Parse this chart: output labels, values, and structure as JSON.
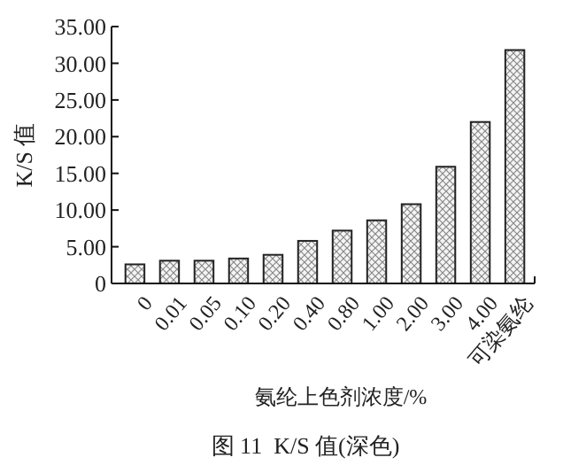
{
  "chart_data": {
    "type": "bar",
    "title": "图 11  K/S 值(深色)",
    "xlabel": "氨纶上色剂浓度/%",
    "ylabel": "K/S 值",
    "categories": [
      "0",
      "0.01",
      "0.05",
      "0.10",
      "0.20",
      "0.40",
      "0.80",
      "1.00",
      "2.00",
      "3.00",
      "4.00",
      "可染氨纶"
    ],
    "values": [
      2.6,
      3.1,
      3.1,
      3.4,
      3.9,
      5.8,
      7.2,
      8.6,
      10.8,
      15.9,
      22.0,
      31.8
    ],
    "color": "#222222",
    "ylim": [
      0,
      35
    ],
    "yticks": [
      0,
      {
        "value": 5,
        "label": "5.00"
      },
      {
        "value": 10,
        "label": "10.00"
      },
      {
        "value": 15,
        "label": "15.00"
      },
      {
        "value": 20,
        "label": "20.00"
      },
      {
        "value": 25,
        "label": "25.00"
      },
      {
        "value": 30,
        "label": "30.00"
      },
      {
        "value": 35,
        "label": "35.00"
      }
    ],
    "grid": false
  }
}
